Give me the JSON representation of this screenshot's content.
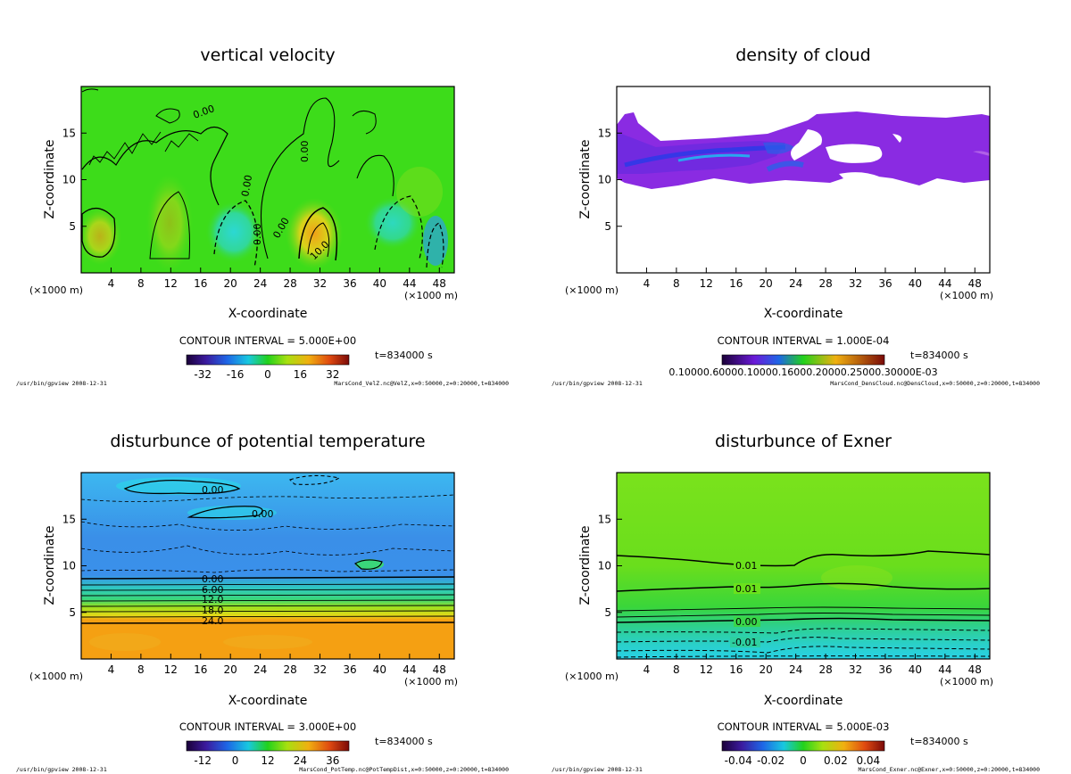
{
  "chart_data": [
    {
      "type": "heatmap",
      "id": "vv",
      "title": "vertical velocity",
      "xlabel": "X-coordinate",
      "ylabel": "Z-coordinate",
      "xunit": "(×1000 m)",
      "xlim": [
        0,
        50
      ],
      "ylim": [
        0,
        20
      ],
      "xticks": [
        "4",
        "8",
        "12",
        "16",
        "20",
        "24",
        "28",
        "32",
        "36",
        "40",
        "44",
        "48"
      ],
      "yticks": [
        "5",
        "10",
        "15"
      ],
      "contour_interval": "CONTOUR INTERVAL = 5.000E+00",
      "time": "t=834000 s",
      "colorbar_range": [
        -40,
        40
      ],
      "colorbar_ticks": [
        "-32",
        "-16",
        "0",
        "16",
        "32"
      ],
      "contour_labels": [
        "0.00",
        "0.00",
        "0.00",
        "0.00",
        "0.00",
        "10.0"
      ],
      "footer_left": "/usr/bin/gpview  2008-12-31",
      "footer_right": "MarsCond_VelZ.nc@VelZ,x=0:50000,z=0:20000,t=834000"
    },
    {
      "type": "heatmap",
      "id": "cloud",
      "title": "density of cloud",
      "xlabel": "X-coordinate",
      "ylabel": "Z-coordinate",
      "xunit": "(×1000 m)",
      "xlim": [
        0,
        50
      ],
      "ylim": [
        0,
        20
      ],
      "xticks": [
        "4",
        "8",
        "12",
        "16",
        "20",
        "24",
        "28",
        "32",
        "36",
        "40",
        "44",
        "48"
      ],
      "yticks": [
        "5",
        "10",
        "15"
      ],
      "contour_interval": "CONTOUR INTERVAL = 1.000E-04",
      "time": "t=834000 s",
      "colorbar_ticks_text": "0.10000.60000.10000.16000.20000.25000.30000E-03",
      "footer_left": "/usr/bin/gpview  2008-12-31",
      "footer_right": "MarsCond_DensCloud.nc@DensCloud,x=0:50000,z=0:20000,t=834000"
    },
    {
      "type": "heatmap",
      "id": "pt",
      "title": "disturbunce of potential temperature",
      "xlabel": "X-coordinate",
      "ylabel": "Z-coordinate",
      "xunit": "(×1000 m)",
      "xlim": [
        0,
        50
      ],
      "ylim": [
        0,
        20
      ],
      "xticks": [
        "4",
        "8",
        "12",
        "16",
        "20",
        "24",
        "28",
        "32",
        "36",
        "40",
        "44",
        "48"
      ],
      "yticks": [
        "5",
        "10",
        "15"
      ],
      "contour_interval": "CONTOUR INTERVAL = 3.000E+00",
      "time": "t=834000 s",
      "colorbar_range": [
        -18,
        42
      ],
      "colorbar_ticks": [
        "-12",
        "0",
        "12",
        "24",
        "36"
      ],
      "contour_labels": [
        "0.00",
        "0.00",
        "0.00",
        "6.00",
        "12.0",
        "18.0",
        "24.0"
      ],
      "footer_left": "/usr/bin/gpview  2008-12-31",
      "footer_right": "MarsCond_PotTemp.nc@PotTempDist,x=0:50000,z=0:20000,t=834000"
    },
    {
      "type": "heatmap",
      "id": "exner",
      "title": "disturbunce of Exner",
      "xlabel": "X-coordinate",
      "ylabel": "Z-coordinate",
      "xunit": "(×1000 m)",
      "xlim": [
        0,
        50
      ],
      "ylim": [
        0,
        20
      ],
      "xticks": [
        "4",
        "8",
        "12",
        "16",
        "20",
        "24",
        "28",
        "32",
        "36",
        "40",
        "44",
        "48"
      ],
      "yticks": [
        "5",
        "10",
        "15"
      ],
      "contour_interval": "CONTOUR INTERVAL = 5.000E-03",
      "time": "t=834000 s",
      "colorbar_range": [
        -0.05,
        0.05
      ],
      "colorbar_ticks": [
        "-0.04",
        "-0.02",
        "0",
        "0.02",
        "0.04"
      ],
      "contour_labels": [
        "0.01",
        "0.01",
        "0.00",
        "-0.01"
      ],
      "footer_left": "/usr/bin/gpview  2008-12-31",
      "footer_right": "MarsCond_Exner.nc@Exner,x=0:50000,z=0:20000,t=834000"
    }
  ],
  "colors": {
    "green_bg": "#3ddc1a",
    "exner_bg": "#6be21c",
    "cloud_purple": "#8a2be2",
    "pt_blue": "#3a8fe8",
    "pt_orange": "#f5a012"
  }
}
